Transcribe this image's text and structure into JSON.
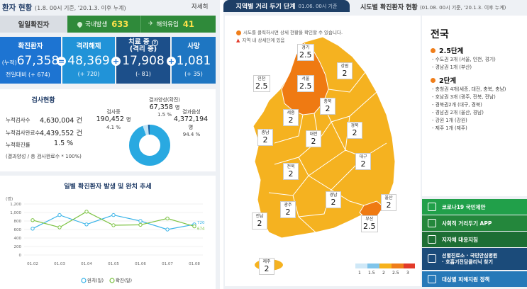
{
  "left": {
    "title": "환자 현황",
    "title_sub": "(1.8. 00시 기준, '20.1.3. 이후 누계)",
    "more": "자세히",
    "confirmed_row": {
      "label": "일일확진자",
      "domestic_label": "국내발생",
      "domestic_value": "633",
      "overseas_label": "해외유입",
      "overseas_value": "41"
    },
    "stats": {
      "confirmed": {
        "label": "확진환자",
        "prefix": "(누적)",
        "value": "67,358",
        "delta": "전일대비 (+ 674)"
      },
      "released": {
        "label": "격리해제",
        "value": "48,369",
        "delta": "(+ 720)"
      },
      "treating": {
        "label": "치료 중",
        "label2": "(격리 중)",
        "value": "17,908",
        "delta": "(- 81)"
      },
      "deaths": {
        "label": "사망",
        "value": "1,081",
        "delta": "(+ 35)"
      },
      "op1": "=",
      "op2": "+",
      "op3": "+"
    },
    "tests": {
      "title": "검사현황",
      "rows": [
        {
          "label": "누적검사수",
          "value": "4,630,004 건"
        },
        {
          "label": "누적검사완료수",
          "value": "4,439,552 건"
        },
        {
          "label": "누적확진률",
          "value": "1.5 %"
        }
      ],
      "note": "(결과양성 / 총 검사완료수 * 100%)",
      "in_test_label": "검사중",
      "in_test_value": "190,452",
      "in_test_unit": "명",
      "in_test_pct": "4.1 %",
      "positive_label": "결과양성(확진)",
      "positive_value": "67,358",
      "positive_unit": "명",
      "positive_pct": "1.5 %",
      "negative_label": "결과음성",
      "negative_value": "4,372,194",
      "negative_unit": "명",
      "negative_pct": "94.4 %"
    },
    "trend": {
      "title": "일별 확진환자 발생 및 완치 추세",
      "unit_label": "(명)",
      "legend_released": "완치(일)",
      "legend_confirmed": "확진(일)"
    }
  },
  "chart_data": {
    "type": "line",
    "title": "일별 확진환자 발생 및 완치 추세",
    "ylabel": "(명)",
    "ylim": [
      0,
      1200
    ],
    "yticks": [
      0,
      200,
      400,
      600,
      800,
      1000,
      1200
    ],
    "categories": [
      "01.02",
      "01.03",
      "01.04",
      "01.05",
      "01.06",
      "01.07",
      "01.08"
    ],
    "series": [
      {
        "name": "완치(일)",
        "color": "#3ab4e8",
        "values": [
          620,
          940,
          720,
          940,
          800,
          600,
          720
        ]
      },
      {
        "name": "확진(일)",
        "color": "#7cc242",
        "values": [
          820,
          650,
          1020,
          700,
          710,
          860,
          674
        ]
      }
    ],
    "end_labels": [
      "720",
      "674"
    ],
    "legend": "bottom",
    "grid": true
  },
  "donut": {
    "in_test_fraction": 0.041,
    "positive_fraction": 0.015,
    "negative_fraction": 0.944,
    "colors": {
      "negative": "#29a9e1",
      "in_test": "#bfe3f5",
      "positive": "#1b5fa0"
    }
  },
  "right": {
    "tab_active": "지역별 거리 두기 단계",
    "tab_active_sub": "01.06. 00시 기준",
    "tab_inactive": "시도별 확진환자 현황",
    "tab_inactive_sub": "(01.08. 00시 기준, '20.1.3. 이후 누계)",
    "notice1": "시도를 클릭하시면 상세 현황을 확인할 수 있습니다.",
    "notice2": "지역 내 상세단계 있음",
    "regions": [
      {
        "name": "경기",
        "level": "2.5"
      },
      {
        "name": "인천",
        "level": "2.5"
      },
      {
        "name": "서울",
        "level": "2.5"
      },
      {
        "name": "강원",
        "level": "2"
      },
      {
        "name": "충북",
        "level": "2"
      },
      {
        "name": "세종",
        "level": "2"
      },
      {
        "name": "충남",
        "level": "2"
      },
      {
        "name": "대전",
        "level": "2"
      },
      {
        "name": "경북",
        "level": "2"
      },
      {
        "name": "전북",
        "level": "2"
      },
      {
        "name": "대구",
        "level": "2"
      },
      {
        "name": "경남",
        "level": "2"
      },
      {
        "name": "울산",
        "level": "2"
      },
      {
        "name": "광주",
        "level": "2"
      },
      {
        "name": "전남",
        "level": "2"
      },
      {
        "name": "부산",
        "level": "2.5"
      },
      {
        "name": "제주",
        "level": "2"
      }
    ],
    "legend": {
      "labels": [
        "1",
        "1.5",
        "2",
        "2.5",
        "3"
      ],
      "colors": [
        "#cfe8f7",
        "#7fc4ea",
        "#f6b21c",
        "#ef7d1a",
        "#e23b2a"
      ]
    },
    "map_colors": {
      "level2": "#f5b220",
      "level25": "#ef7a12",
      "border": "#ffffff",
      "sea": "#ffffff"
    },
    "side": {
      "title": "전국",
      "level_a": "2.5단계",
      "level_a_items": [
        "- 수도권 3개 (서울, 인천, 경기)",
        "- 경남권 1개 (부산)"
      ],
      "level_b": "2단계",
      "level_b_items": [
        "- 충청권 4개(세종, 대전, 충북, 충남)",
        "- 호남권 3개 (광주, 전북, 전남)",
        "- 경북권2개 (대구, 경북)",
        "- 경남권 2개 (울산, 경남)",
        "- 강원 1개 (강원)",
        "- 제주 1개 (제주)"
      ]
    },
    "menu": [
      {
        "label": "코로나19 국민제안"
      },
      {
        "label": "사회적 거리두기 APP"
      },
      {
        "label": "지자체 대응지침"
      },
      {
        "label": "선별진료소 · 국민안심병원",
        "label2": "· 호흡기전담클리닉 찾기"
      },
      {
        "label": "대상별 피해지원 정책"
      }
    ]
  }
}
